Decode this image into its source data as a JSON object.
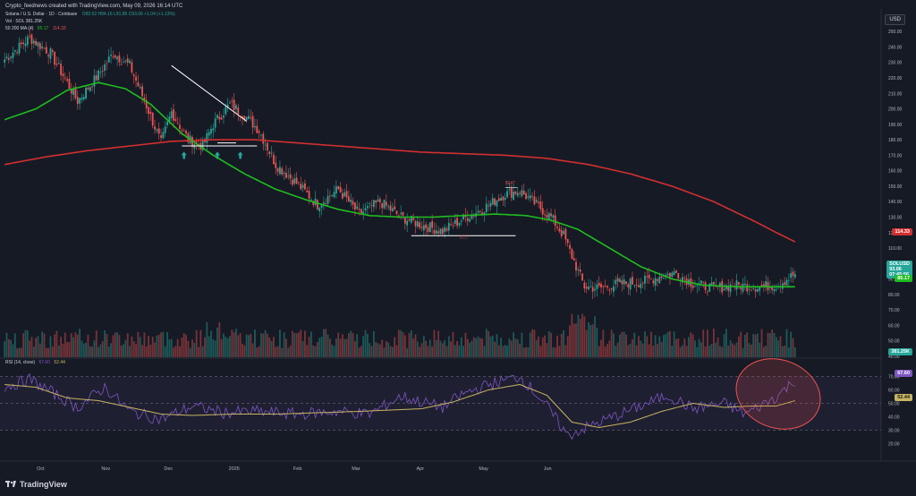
{
  "header": {
    "credit": "Crypto_feednews created with TradingView.com, May 09, 2026 16:14 UTC",
    "symbol_line": "Solana / U.S. Dollar · 1D · Coinbase",
    "ohlc": "O92.02  H94.16  L91.85  C93.06  +1.04 (+1.13%)",
    "vol_line": "Vol · SOL  381.25K",
    "ma_label": "50 200 MA (4)",
    "ma50_value": "85.17",
    "ma200_value": "114.33",
    "rsi_label": "RSI (14, close)",
    "rsi_value": "67.60",
    "rsi_ma_value": "52.44"
  },
  "currency": "USD",
  "footer": {
    "brand": "TradingView"
  },
  "colors": {
    "background": "#161a25",
    "up": "#26a69a",
    "down": "#ef5350",
    "ma50": "#1fbd1f",
    "ma200": "#d32f2f",
    "rsi": "#7e57c2",
    "rsi_ma": "#c8b560",
    "annotation": "#ef5350"
  },
  "annotations": {
    "price_high": "$147",
    "price_low": "$117"
  },
  "price_axis_labels": [
    "250.00",
    "240.00",
    "230.00",
    "220.00",
    "210.00",
    "200.00",
    "190.00",
    "180.00",
    "170.00",
    "160.00",
    "150.00",
    "140.00",
    "130.00",
    "120.00",
    "110.00",
    "90.00",
    "80.00",
    "70.00",
    "60.00",
    "50.00",
    "40.00"
  ],
  "rsi_axis_labels": [
    "70.00",
    "60.00",
    "50.00",
    "40.00",
    "30.00",
    "20.00"
  ],
  "time_axis_labels": [
    "Oct",
    "Nov",
    "Dec",
    "2026",
    "Feb",
    "Mar",
    "Apr",
    "May",
    "Jun"
  ],
  "chips": {
    "ma200": "114.33",
    "sol_symbol": "SOLUSD",
    "sol_price": "93.06",
    "sol_timer": "07:45:56",
    "ma50": "85.17",
    "volume": "381.25K",
    "rsi": "67.60",
    "rsi_ma": "52.44"
  },
  "chart_data": {
    "type": "candlestick",
    "title": "Solana / U.S. Dollar · 1D · Coinbase",
    "price_range": [
      40,
      253
    ],
    "rsi_range": [
      17,
      77
    ],
    "series": [
      {
        "name": "Price (close)",
        "anchors": [
          [
            0,
            232
          ],
          [
            12,
            246
          ],
          [
            22,
            236
          ],
          [
            35,
            205
          ],
          [
            45,
            222
          ],
          [
            52,
            236
          ],
          [
            60,
            228
          ],
          [
            68,
            202
          ],
          [
            75,
            178
          ],
          [
            80,
            198
          ],
          [
            88,
            180
          ],
          [
            95,
            176
          ],
          [
            100,
            190
          ],
          [
            108,
            203
          ],
          [
            115,
            196
          ],
          [
            122,
            186
          ],
          [
            130,
            164
          ],
          [
            140,
            152
          ],
          [
            150,
            138
          ],
          [
            160,
            148
          ],
          [
            170,
            132
          ],
          [
            180,
            140
          ],
          [
            190,
            130
          ],
          [
            200,
            125
          ],
          [
            210,
            121
          ],
          [
            220,
            129
          ],
          [
            230,
            136
          ],
          [
            240,
            145
          ],
          [
            247,
            147
          ],
          [
            255,
            138
          ],
          [
            262,
            130
          ],
          [
            268,
            118
          ],
          [
            274,
            98
          ],
          [
            278,
            85
          ],
          [
            285,
            84
          ],
          [
            295,
            87
          ],
          [
            305,
            88
          ],
          [
            315,
            92
          ],
          [
            322,
            94
          ],
          [
            330,
            87
          ],
          [
            340,
            84
          ],
          [
            350,
            86
          ],
          [
            360,
            85
          ],
          [
            370,
            86
          ],
          [
            379,
            93
          ]
        ]
      },
      {
        "name": "MA 50",
        "anchors": [
          [
            0,
            193
          ],
          [
            15,
            200
          ],
          [
            30,
            212
          ],
          [
            45,
            217
          ],
          [
            58,
            213
          ],
          [
            70,
            203
          ],
          [
            85,
            184
          ],
          [
            100,
            170
          ],
          [
            115,
            158
          ],
          [
            130,
            148
          ],
          [
            145,
            141
          ],
          [
            160,
            135
          ],
          [
            175,
            131
          ],
          [
            190,
            130
          ],
          [
            205,
            130
          ],
          [
            220,
            131
          ],
          [
            235,
            132
          ],
          [
            250,
            131
          ],
          [
            262,
            128
          ],
          [
            275,
            122
          ],
          [
            285,
            114
          ],
          [
            295,
            106
          ],
          [
            305,
            98
          ],
          [
            320,
            90
          ],
          [
            335,
            86
          ],
          [
            350,
            85
          ],
          [
            365,
            85
          ],
          [
            379,
            85
          ]
        ]
      },
      {
        "name": "MA 200",
        "anchors": [
          [
            0,
            164
          ],
          [
            20,
            169
          ],
          [
            40,
            173
          ],
          [
            60,
            176
          ],
          [
            80,
            179
          ],
          [
            100,
            180
          ],
          [
            120,
            180
          ],
          [
            140,
            178
          ],
          [
            160,
            176
          ],
          [
            180,
            174
          ],
          [
            200,
            172
          ],
          [
            220,
            171
          ],
          [
            240,
            170
          ],
          [
            260,
            168
          ],
          [
            280,
            164
          ],
          [
            300,
            158
          ],
          [
            320,
            150
          ],
          [
            340,
            140
          ],
          [
            360,
            127
          ],
          [
            370,
            120
          ],
          [
            379,
            114
          ]
        ]
      },
      {
        "name": "RSI 14",
        "anchors": [
          [
            0,
            62
          ],
          [
            12,
            68
          ],
          [
            25,
            56
          ],
          [
            35,
            47
          ],
          [
            48,
            62
          ],
          [
            60,
            44
          ],
          [
            75,
            38
          ],
          [
            90,
            48
          ],
          [
            105,
            43
          ],
          [
            120,
            44
          ],
          [
            140,
            42
          ],
          [
            160,
            44
          ],
          [
            175,
            42
          ],
          [
            190,
            55
          ],
          [
            210,
            47
          ],
          [
            220,
            57
          ],
          [
            232,
            64
          ],
          [
            247,
            70
          ],
          [
            258,
            52
          ],
          [
            270,
            26
          ],
          [
            282,
            34
          ],
          [
            292,
            40
          ],
          [
            305,
            48
          ],
          [
            318,
            56
          ],
          [
            330,
            46
          ],
          [
            345,
            50
          ],
          [
            355,
            42
          ],
          [
            362,
            48
          ],
          [
            370,
            55
          ],
          [
            379,
            67
          ]
        ]
      },
      {
        "name": "RSI MA",
        "anchors": [
          [
            0,
            64
          ],
          [
            15,
            62
          ],
          [
            30,
            54
          ],
          [
            45,
            52
          ],
          [
            60,
            47
          ],
          [
            75,
            42
          ],
          [
            90,
            41
          ],
          [
            110,
            42
          ],
          [
            130,
            42
          ],
          [
            150,
            43
          ],
          [
            170,
            44
          ],
          [
            185,
            45
          ],
          [
            200,
            46
          ],
          [
            215,
            51
          ],
          [
            232,
            60
          ],
          [
            247,
            64
          ],
          [
            260,
            56
          ],
          [
            272,
            36
          ],
          [
            285,
            32
          ],
          [
            300,
            36
          ],
          [
            315,
            44
          ],
          [
            330,
            50
          ],
          [
            345,
            47
          ],
          [
            358,
            48
          ],
          [
            370,
            48
          ],
          [
            379,
            52
          ]
        ]
      }
    ]
  }
}
